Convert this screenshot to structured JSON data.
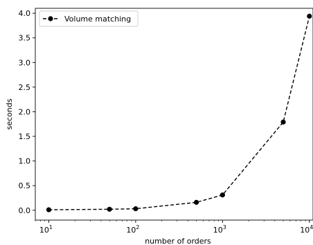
{
  "chart_data": {
    "type": "line",
    "xscale": "log",
    "x_ticks": [
      {
        "value": 10,
        "base": "10",
        "exp": "1"
      },
      {
        "value": 100,
        "base": "10",
        "exp": "2"
      },
      {
        "value": 1000,
        "base": "10",
        "exp": "3"
      },
      {
        "value": 10000,
        "base": "10",
        "exp": "4"
      }
    ],
    "y_ticks": [
      "0.0",
      "0.5",
      "1.0",
      "1.5",
      "2.0",
      "2.5",
      "3.0",
      "3.5",
      "4.0"
    ],
    "xlabel": "number of orders",
    "ylabel": "seconds",
    "xlim": [
      7,
      11000
    ],
    "ylim": [
      -0.2,
      4.1
    ],
    "grid": false,
    "legend_position": "top-left",
    "series": [
      {
        "name": "Volume matching",
        "color": "#000000",
        "line_style": "dashed",
        "marker": "circle",
        "x": [
          10,
          50,
          100,
          500,
          1000,
          5000,
          10000
        ],
        "y": [
          0.01,
          0.02,
          0.03,
          0.16,
          0.31,
          1.79,
          3.94
        ]
      }
    ]
  }
}
